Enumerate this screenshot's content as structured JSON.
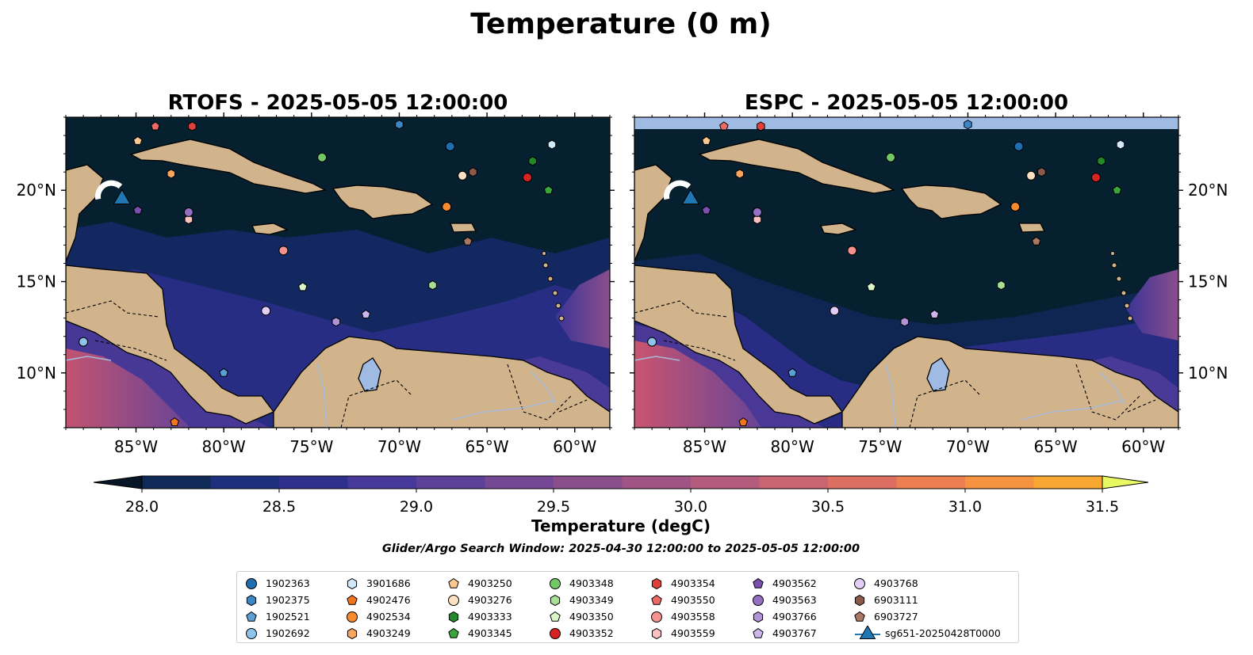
{
  "figure": {
    "title": "Temperature (0 m)",
    "panels": [
      {
        "id": "rtofs",
        "title": "RTOFS - 2025-05-05 12:00:00",
        "lat_ticks": [
          "20°N",
          "15°N",
          "10°N"
        ],
        "lon_ticks": [
          "85°W",
          "80°W",
          "75°W",
          "70°W",
          "65°W",
          "60°W"
        ],
        "lat_label_side": "left"
      },
      {
        "id": "espc",
        "title": "ESPC - 2025-05-05 12:00:00",
        "lat_ticks": [
          "20°N",
          "15°N",
          "10°N"
        ],
        "lon_ticks": [
          "85°W",
          "80°W",
          "75°W",
          "70°W",
          "65°W",
          "60°W"
        ],
        "lat_label_side": "right"
      }
    ],
    "colorbar": {
      "label": "Temperature (degC)",
      "ticks": [
        "28.0",
        "28.5",
        "29.0",
        "29.5",
        "30.0",
        "30.5",
        "31.0",
        "31.5"
      ],
      "colors": [
        "#0a2033",
        "#0f2a57",
        "#1e2f7e",
        "#2f2f8e",
        "#46399a",
        "#5d4199",
        "#744894",
        "#8a4e8c",
        "#a05486",
        "#b55c7c",
        "#c96471",
        "#dc6f62",
        "#ec8052",
        "#f59340",
        "#f8a832",
        "#f7c13a",
        "#f2da45"
      ],
      "extend_low": "#071626",
      "extend_high": "#e8f863"
    },
    "search_window": "Glider/Argo Search Window: 2025-04-30 12:00:00 to 2025-05-05 12:00:00",
    "legend": [
      {
        "label": "1902363",
        "marker": "circle",
        "color": "#1f6fb0"
      },
      {
        "label": "1902375",
        "marker": "hexagon",
        "color": "#3b86c4"
      },
      {
        "label": "1902521",
        "marker": "pentagon",
        "color": "#5a9fd6"
      },
      {
        "label": "1902692",
        "marker": "circle",
        "color": "#8fc3ea"
      },
      {
        "label": "3901686",
        "marker": "hexagon",
        "color": "#cfe8fa"
      },
      {
        "label": "4902476",
        "marker": "pentagon",
        "color": "#f2761f"
      },
      {
        "label": "4902534",
        "marker": "circle",
        "color": "#f58b2e"
      },
      {
        "label": "4903249",
        "marker": "hexagon",
        "color": "#f9a55e"
      },
      {
        "label": "4903250",
        "marker": "pentagon",
        "color": "#fbc88f"
      },
      {
        "label": "4903276",
        "marker": "circle",
        "color": "#fde0c2"
      },
      {
        "label": "4903333",
        "marker": "hexagon",
        "color": "#238a2b"
      },
      {
        "label": "4903345",
        "marker": "pentagon",
        "color": "#3aa63a"
      },
      {
        "label": "4903348",
        "marker": "circle",
        "color": "#72c865"
      },
      {
        "label": "4903349",
        "marker": "hexagon",
        "color": "#a8df94"
      },
      {
        "label": "4903350",
        "marker": "pentagon",
        "color": "#d8f5c8"
      },
      {
        "label": "4903352",
        "marker": "circle",
        "color": "#d62424"
      },
      {
        "label": "4903354",
        "marker": "hexagon",
        "color": "#e0403c"
      },
      {
        "label": "4903550",
        "marker": "pentagon",
        "color": "#eb6a66"
      },
      {
        "label": "4903558",
        "marker": "circle",
        "color": "#f4928f"
      },
      {
        "label": "4903559",
        "marker": "hexagon",
        "color": "#f9c2bf"
      },
      {
        "label": "4903562",
        "marker": "pentagon",
        "color": "#7a4fae"
      },
      {
        "label": "4903563",
        "marker": "circle",
        "color": "#9470c2"
      },
      {
        "label": "4903766",
        "marker": "hexagon",
        "color": "#b194d8"
      },
      {
        "label": "4903767",
        "marker": "pentagon",
        "color": "#cdb7ea"
      },
      {
        "label": "4903768",
        "marker": "circle",
        "color": "#e2cdf4"
      },
      {
        "label": "6903111",
        "marker": "hexagon",
        "color": "#8c5a4a"
      },
      {
        "label": "6903727",
        "marker": "pentagon",
        "color": "#a97763"
      },
      {
        "label": "sg651-20250428T0000",
        "marker": "triangle",
        "color": "#1f77b4"
      }
    ]
  },
  "map_data": {
    "extent": {
      "lon": [
        -89,
        -58
      ],
      "lat": [
        7,
        24
      ]
    },
    "glider": {
      "label": "sg651-20250428T0000",
      "lon": -85.8,
      "lat": 19.6
    },
    "floats": [
      {
        "id": "1902363",
        "lon": -67.1,
        "lat": 22.4
      },
      {
        "id": "1902375",
        "lon": -70.0,
        "lat": 23.6
      },
      {
        "id": "1902521",
        "lon": -80.0,
        "lat": 10.0
      },
      {
        "id": "1902692",
        "lon": -88.0,
        "lat": 11.7
      },
      {
        "id": "3901686",
        "lon": -61.3,
        "lat": 22.5
      },
      {
        "id": "4902476",
        "lon": -82.8,
        "lat": 7.3
      },
      {
        "id": "4902534",
        "lon": -67.3,
        "lat": 19.1
      },
      {
        "id": "4903249",
        "lon": -83.0,
        "lat": 20.9
      },
      {
        "id": "4903250",
        "lon": -84.9,
        "lat": 22.7
      },
      {
        "id": "4903276",
        "lon": -66.4,
        "lat": 20.8
      },
      {
        "id": "4903333",
        "lon": -62.4,
        "lat": 21.6
      },
      {
        "id": "4903345",
        "lon": -61.5,
        "lat": 20.0
      },
      {
        "id": "4903348",
        "lon": -74.4,
        "lat": 21.8
      },
      {
        "id": "4903349",
        "lon": -68.1,
        "lat": 14.8
      },
      {
        "id": "4903350",
        "lon": -75.5,
        "lat": 14.7
      },
      {
        "id": "4903352",
        "lon": -62.7,
        "lat": 20.7
      },
      {
        "id": "4903354",
        "lon": -81.8,
        "lat": 23.5
      },
      {
        "id": "4903550",
        "lon": -83.9,
        "lat": 23.5
      },
      {
        "id": "4903558",
        "lon": -76.6,
        "lat": 16.7
      },
      {
        "id": "4903559",
        "lon": -82.0,
        "lat": 18.4
      },
      {
        "id": "4903562",
        "lon": -84.9,
        "lat": 18.9
      },
      {
        "id": "4903563",
        "lon": -82.0,
        "lat": 18.8
      },
      {
        "id": "4903766",
        "lon": -73.6,
        "lat": 12.8
      },
      {
        "id": "4903767",
        "lon": -71.9,
        "lat": 13.2
      },
      {
        "id": "4903768",
        "lon": -77.6,
        "lat": 13.4
      },
      {
        "id": "6903111",
        "lon": -65.8,
        "lat": 21.0
      },
      {
        "id": "6903727",
        "lon": -66.1,
        "lat": 17.2
      }
    ]
  }
}
